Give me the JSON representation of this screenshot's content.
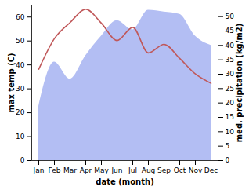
{
  "chart_data": {
    "type": "line",
    "categories": [
      "Jan",
      "Feb",
      "Mar",
      "Apr",
      "May",
      "Jun",
      "Jul",
      "Aug",
      "Sep",
      "Oct",
      "Nov",
      "Dec"
    ],
    "xlabel": "date (month)",
    "ylabel": "max temp (C)",
    "y2label": "med. precipitation (kg/m2)",
    "ylim": [
      0,
      65
    ],
    "yticks": [
      0,
      10,
      20,
      30,
      40,
      50,
      60
    ],
    "y2lim": [
      0,
      54
    ],
    "y2ticks": [
      0,
      5,
      10,
      15,
      20,
      25,
      30,
      35,
      40,
      45,
      50
    ],
    "series": [
      {
        "name": "med. precipitation",
        "type": "area",
        "axis": "y2",
        "color": "#b3bef3",
        "values": [
          18.8,
          34.2,
          28.3,
          36.4,
          43.2,
          48.6,
          45.4,
          52.2,
          51.6,
          50.8,
          43.2,
          40
        ]
      },
      {
        "name": "max temp",
        "type": "line",
        "axis": "y",
        "color": "#c0585a",
        "values": [
          38.2,
          51,
          57.7,
          63.3,
          57.4,
          50.2,
          55.7,
          45,
          48.6,
          42.7,
          36.2,
          32.3
        ]
      }
    ]
  }
}
